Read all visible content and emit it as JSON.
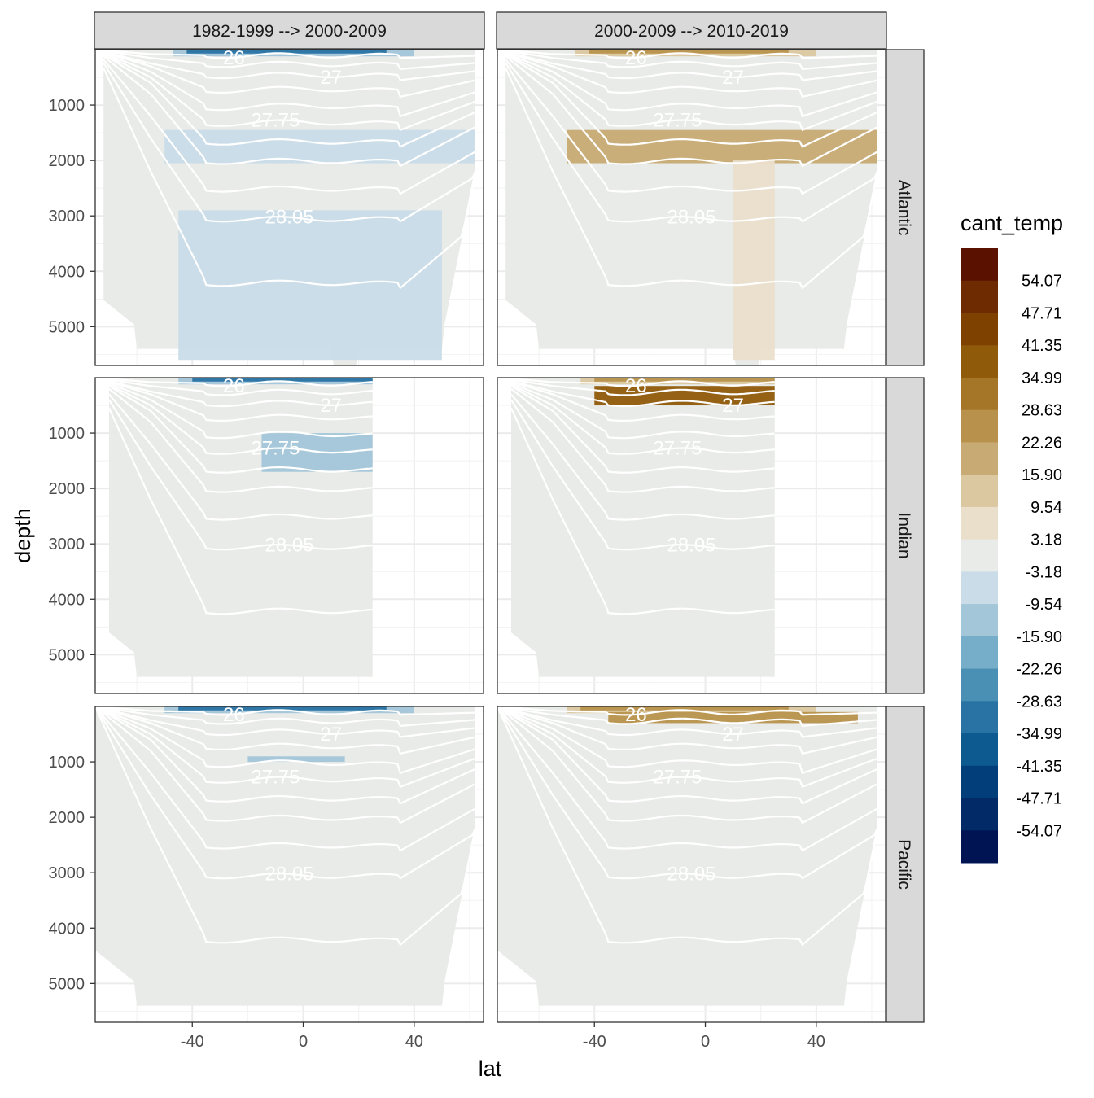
{
  "chart_data": {
    "type": "heatmap",
    "title": "",
    "xlabel": "lat",
    "ylabel": "depth",
    "xlim": [
      -75,
      65
    ],
    "ylim": [
      5700,
      0
    ],
    "x_ticks": [
      -40,
      0,
      40
    ],
    "y_ticks": [
      1000,
      2000,
      3000,
      4000,
      5000
    ],
    "facet_columns": [
      "1982-1999 --> 2000-2009",
      "2000-2009 --> 2010-2019"
    ],
    "facet_rows": [
      "Atlantic",
      "Indian",
      "Pacific"
    ],
    "isopycnal_labels": [
      "26",
      "27",
      "27.75",
      "28.05"
    ],
    "ocean_lat_range": {
      "Atlantic": [
        -72,
        62
      ],
      "Indian": [
        -70,
        25
      ],
      "Pacific": [
        -75,
        62
      ]
    },
    "legend": {
      "title": "cant_temp",
      "labels": [
        "54.07",
        "47.71",
        "41.35",
        "34.99",
        "28.63",
        "22.26",
        "15.90",
        "9.54",
        "3.18",
        "-3.18",
        "-9.54",
        "-15.90",
        "-22.26",
        "-28.63",
        "-34.99",
        "-41.35",
        "-47.71",
        "-54.07"
      ],
      "colors": [
        "#5a1100",
        "#6e2a00",
        "#7f4100",
        "#8f5a0a",
        "#a57528",
        "#b8924c",
        "#c8ab74",
        "#dbc8a0",
        "#eadfcb",
        "#e9ebe8",
        "#c9dce8",
        "#a3c6d9",
        "#76adc8",
        "#4a8fb4",
        "#2873a3",
        "#0d5a90",
        "#023f7a",
        "#012a67",
        "#001454"
      ]
    },
    "panels": [
      {
        "column": "1982-1999 --> 2000-2009",
        "row": "Atlantic",
        "description": "negative surface bands; deep weak negative signal"
      },
      {
        "column": "2000-2009 --> 2010-2019",
        "row": "Atlantic",
        "description": "positive intermediate band around 1500-2000 m"
      },
      {
        "column": "1982-1999 --> 2000-2009",
        "row": "Indian",
        "description": "negative surface and intermediate bands"
      },
      {
        "column": "2000-2009 --> 2010-2019",
        "row": "Indian",
        "description": "strong positive near-surface band"
      },
      {
        "column": "1982-1999 --> 2000-2009",
        "row": "Pacific",
        "description": "negative surface signal"
      },
      {
        "column": "2000-2009 --> 2010-2019",
        "row": "Pacific",
        "description": "positive near-surface band"
      }
    ]
  }
}
